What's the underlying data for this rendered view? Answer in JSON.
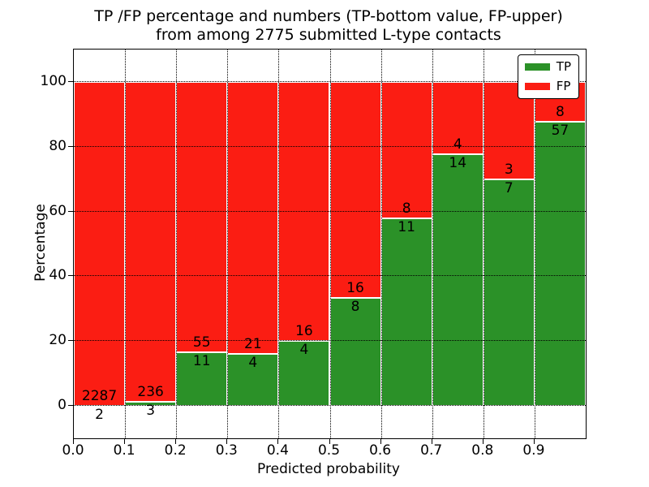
{
  "figure": {
    "title_line1": "TP /FP percentage and numbers (TP-bottom value, FP-upper)",
    "title_line2": "from among 2775 submitted L-type contacts",
    "xlabel": "Predicted probability",
    "ylabel": "Percentage"
  },
  "legend": {
    "items": [
      {
        "label": "TP",
        "color": "#2b9128"
      },
      {
        "label": "FP",
        "color": "#fb1d13"
      }
    ]
  },
  "chart_data": {
    "type": "bar",
    "subtype": "stacked-percentage-histogram",
    "title": "TP /FP percentage and numbers (TP-bottom value, FP-upper) from among 2775 submitted L-type contacts",
    "xlabel": "Predicted probability",
    "ylabel": "Percentage",
    "total_contacts": 2775,
    "categories": [
      "0.0-0.1",
      "0.1-0.2",
      "0.2-0.3",
      "0.3-0.4",
      "0.4-0.5",
      "0.5-0.6",
      "0.6-0.7",
      "0.7-0.8",
      "0.8-0.9",
      "0.9-1.0"
    ],
    "series": [
      {
        "name": "TP",
        "color": "#2b9128",
        "counts": [
          2,
          3,
          11,
          4,
          4,
          8,
          11,
          14,
          7,
          57
        ]
      },
      {
        "name": "FP",
        "color": "#fb1d13",
        "counts": [
          2287,
          236,
          55,
          21,
          16,
          16,
          8,
          4,
          3,
          8
        ]
      }
    ],
    "tp_percent": [
      0.09,
      1.26,
      16.67,
      16.0,
      20.0,
      33.33,
      57.89,
      77.78,
      70.0,
      87.69
    ],
    "x_tick_labels": [
      "0.0",
      "0.1",
      "0.2",
      "0.3",
      "0.4",
      "0.5",
      "0.6",
      "0.7",
      "0.8",
      "0.9"
    ],
    "y_ticks": [
      0,
      20,
      40,
      60,
      80,
      100
    ],
    "y_tick_labels": [
      "0",
      "20",
      "40",
      "60",
      "80",
      "100"
    ],
    "xlim": [
      0.0,
      1.0
    ],
    "ylim": [
      -10,
      110
    ],
    "grid": true,
    "legend_position": "upper right"
  }
}
